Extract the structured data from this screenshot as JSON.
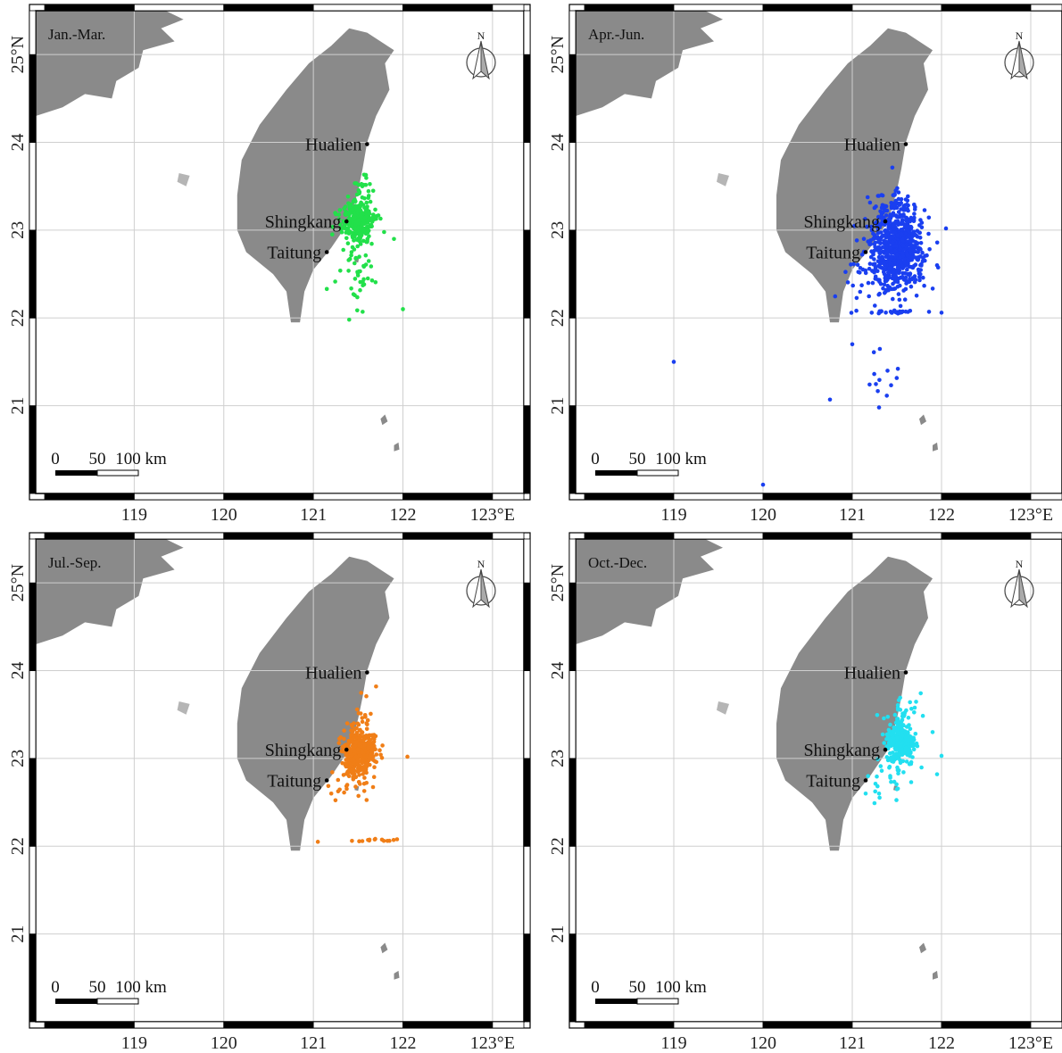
{
  "panels": [
    {
      "season": "Jan.-Mar.",
      "color": "#22e04a"
    },
    {
      "season": "Apr.-Jun.",
      "color": "#1a3ff0"
    },
    {
      "season": "Jul.-Sep.",
      "color": "#f07e17"
    },
    {
      "season": "Oct.-Dec.",
      "color": "#22dff0"
    }
  ],
  "colors": {
    "land": "#8a8a8a",
    "grid": "#cfcfcf",
    "frame": "#000000"
  },
  "x_ticks": [
    "119",
    "120",
    "121",
    "122",
    "123°E"
  ],
  "y_ticks": [
    "25°N",
    "24",
    "23",
    "22",
    "21"
  ],
  "cities": [
    {
      "name": "Hualien",
      "lon": 121.6,
      "lat": 23.98
    },
    {
      "name": "Shingkang",
      "lon": 121.37,
      "lat": 23.1
    },
    {
      "name": "Taitung",
      "lon": 121.15,
      "lat": 22.75
    }
  ],
  "scale_bar": {
    "labels": [
      "0",
      "50",
      "100 km"
    ]
  },
  "north_arrow": {
    "label": "N"
  },
  "icons": {
    "north_arrow": "north-arrow-icon"
  },
  "chart_data": {
    "type": "scatter",
    "xlim": [
      117.9,
      123.35
    ],
    "ylim": [
      20.0,
      25.5
    ],
    "grid": true,
    "clusters": [
      [
        {
          "lon": 121.5,
          "lat": 23.1,
          "sx": 0.09,
          "sy": 0.12,
          "n": 300
        },
        {
          "lon": 121.5,
          "lat": 22.5,
          "sx": 0.1,
          "sy": 0.25,
          "n": 45
        },
        {
          "lon": 121.55,
          "lat": 23.45,
          "sx": 0.06,
          "sy": 0.12,
          "n": 18
        }
      ],
      [
        {
          "lon": 121.5,
          "lat": 22.85,
          "sx": 0.14,
          "sy": 0.25,
          "n": 700
        },
        {
          "lon": 121.3,
          "lat": 22.45,
          "sx": 0.22,
          "sy": 0.15,
          "n": 60
        },
        {
          "lon": 121.45,
          "lat": 22.07,
          "sx": 0.2,
          "sy": 0.01,
          "n": 30
        },
        {
          "lon": 121.3,
          "lat": 21.3,
          "sx": 0.12,
          "sy": 0.18,
          "n": 12
        }
      ],
      [
        {
          "lon": 121.5,
          "lat": 23.05,
          "sx": 0.09,
          "sy": 0.13,
          "n": 400
        },
        {
          "lon": 121.55,
          "lat": 23.4,
          "sx": 0.06,
          "sy": 0.15,
          "n": 25
        },
        {
          "lon": 121.4,
          "lat": 22.65,
          "sx": 0.15,
          "sy": 0.12,
          "n": 20
        },
        {
          "lon": 121.75,
          "lat": 22.07,
          "sx": 0.18,
          "sy": 0.01,
          "n": 14
        }
      ],
      [
        {
          "lon": 121.55,
          "lat": 23.2,
          "sx": 0.08,
          "sy": 0.14,
          "n": 260
        },
        {
          "lon": 121.4,
          "lat": 22.75,
          "sx": 0.15,
          "sy": 0.12,
          "n": 18
        },
        {
          "lon": 121.6,
          "lat": 23.6,
          "sx": 0.07,
          "sy": 0.14,
          "n": 18
        }
      ]
    ],
    "outliers": [
      [
        [
          122.0,
          22.1
        ],
        [
          121.9,
          22.9
        ],
        [
          121.15,
          22.33
        ],
        [
          121.55,
          22.07
        ],
        [
          121.4,
          21.98
        ]
      ],
      [
        [
          119.0,
          21.5
        ],
        [
          120.0,
          20.1
        ],
        [
          120.75,
          21.07
        ],
        [
          121.0,
          21.7
        ],
        [
          122.05,
          23.02
        ],
        [
          121.95,
          22.6
        ],
        [
          122.0,
          22.06
        ],
        [
          121.3,
          20.98
        ]
      ],
      [
        [
          122.05,
          23.02
        ],
        [
          121.7,
          23.82
        ],
        [
          121.05,
          22.05
        ],
        [
          121.2,
          22.6
        ]
      ],
      [
        [
          122.0,
          23.03
        ],
        [
          121.95,
          22.82
        ],
        [
          121.9,
          23.3
        ],
        [
          121.15,
          22.6
        ],
        [
          121.3,
          22.6
        ],
        [
          121.5,
          22.65
        ]
      ]
    ]
  }
}
